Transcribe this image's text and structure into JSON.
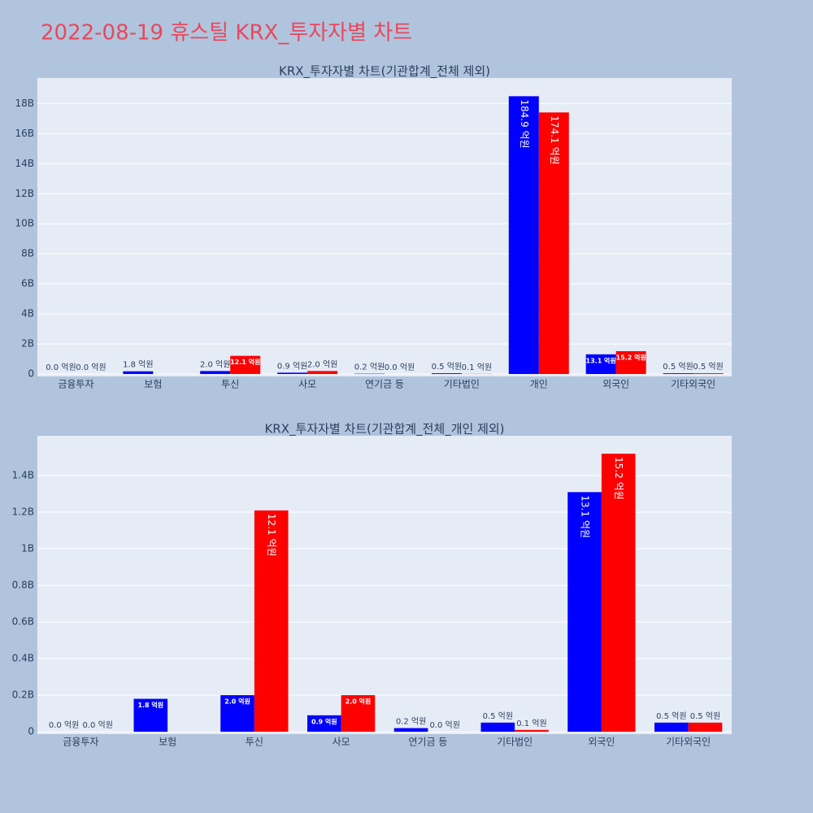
{
  "title": "2022-08-19 휴스틸 KRX_투자자별 차트",
  "chart_data": [
    {
      "type": "bar",
      "title": "KRX_투자자별 차트(기관합계_전체 제외)",
      "categories": [
        "금융투자",
        "보험",
        "투신",
        "사모",
        "연기금 등",
        "기타법인",
        "개인",
        "외국인",
        "기타외국인"
      ],
      "series": [
        {
          "color": "#0000ff",
          "values": [
            0.0,
            0.18,
            0.2,
            0.09,
            0.02,
            0.05,
            18.49,
            1.31,
            0.05
          ],
          "value_labels": [
            "0.0 억원",
            "1.8 억원",
            "2.0 억원",
            "0.9 억원",
            "0.2 억원",
            "0.5 억원",
            "184.9 억원",
            "13.1 억원",
            "0.5 억원"
          ]
        },
        {
          "color": "#ff0000",
          "values": [
            0.0,
            null,
            1.21,
            0.2,
            0.0,
            0.01,
            17.41,
            1.52,
            0.05
          ],
          "value_labels": [
            "0.0 억원",
            null,
            "12.1 억원",
            "2.0 억원",
            "0.0 억원",
            "0.1 억원",
            "174.1 억원",
            "15.2 억원",
            "0.5 억원"
          ]
        }
      ],
      "ylim": [
        -0.16,
        19.7
      ],
      "yticks": [
        0,
        {
          "value": 2,
          "label": "2B"
        },
        {
          "value": 4,
          "label": "4B"
        },
        {
          "value": 6,
          "label": "6B"
        },
        {
          "value": 8,
          "label": "8B"
        },
        {
          "value": 10,
          "label": "10B"
        },
        {
          "value": 12,
          "label": "12B"
        },
        {
          "value": 14,
          "label": "14B"
        },
        {
          "value": 16,
          "label": "16B"
        },
        {
          "value": 18,
          "label": "18B"
        }
      ],
      "grid": true
    },
    {
      "type": "bar",
      "title": "KRX_투자자별 차트(기관합계_전체_개인 제외)",
      "categories": [
        "금융투자",
        "보험",
        "투신",
        "사모",
        "연기금 등",
        "기타법인",
        "외국인",
        "기타외국인"
      ],
      "series": [
        {
          "color": "#0000ff",
          "values": [
            0.0,
            0.18,
            0.2,
            0.09,
            0.02,
            0.05,
            1.31,
            0.05
          ],
          "value_labels": [
            "0.0 억원",
            "1.8 억원",
            "2.0 억원",
            "0.9 억원",
            "0.2 억원",
            "0.5 억원",
            "13.1 억원",
            "0.5 억원"
          ]
        },
        {
          "color": "#ff0000",
          "values": [
            0.0,
            null,
            1.21,
            0.2,
            0.0,
            0.01,
            1.52,
            0.05
          ],
          "value_labels": [
            "0.0 억원",
            null,
            "12.1 억원",
            "2.0 억원",
            "0.0 억원",
            "0.1 억원",
            "15.2 억원",
            "0.5 억원"
          ]
        }
      ],
      "ylim": [
        -0.013,
        1.618
      ],
      "yticks": [
        0,
        {
          "value": 0.2,
          "label": "0.2B"
        },
        {
          "value": 0.4,
          "label": "0.4B"
        },
        {
          "value": 0.6,
          "label": "0.6B"
        },
        {
          "value": 0.8,
          "label": "0.8B"
        },
        {
          "value": 1,
          "label": "1B"
        },
        {
          "value": 1.2,
          "label": "1.2B"
        },
        {
          "value": 1.4,
          "label": "1.4B"
        }
      ],
      "grid": true
    }
  ]
}
